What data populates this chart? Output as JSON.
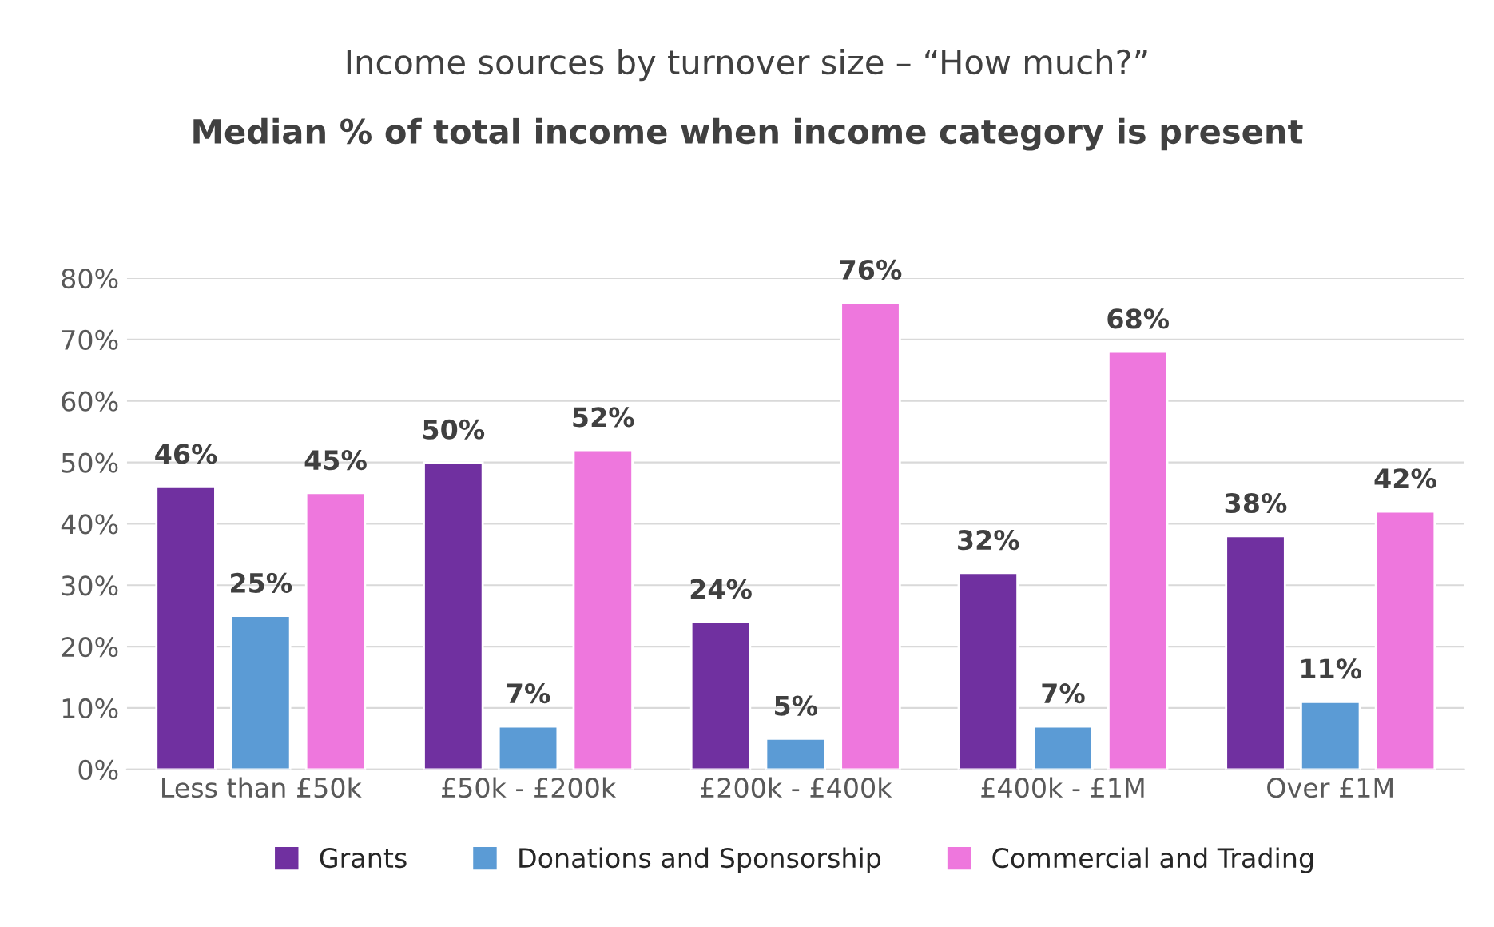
{
  "chart_data": {
    "type": "bar",
    "title": "Income sources by turnover size – “How much?”",
    "subtitle": "Median % of total income when income category is present",
    "categories": [
      "Less than £50k",
      "£50k - £200k",
      "£200k - £400k",
      "£400k - £1M",
      "Over £1M"
    ],
    "series": [
      {
        "name": "Grants",
        "color": "#7030a0",
        "values": [
          46,
          50,
          24,
          32,
          38
        ],
        "value_labels": [
          "46%",
          "50%",
          "24%",
          "32%",
          "38%"
        ]
      },
      {
        "name": "Donations and Sponsorship",
        "color": "#5b9bd5",
        "values": [
          25,
          7,
          5,
          7,
          11
        ],
        "value_labels": [
          "25%",
          "7%",
          "5%",
          "7%",
          "11%"
        ]
      },
      {
        "name": "Commercial and Trading",
        "color": "#ee77dd",
        "values": [
          45,
          52,
          76,
          68,
          42
        ],
        "value_labels": [
          "45%",
          "52%",
          "76%",
          "68%",
          "42%"
        ]
      }
    ],
    "ylim": [
      0,
      80
    ],
    "yticks": [
      {
        "value": 0,
        "label": "0%"
      },
      {
        "value": 10,
        "label": "10%"
      },
      {
        "value": 20,
        "label": "20%"
      },
      {
        "value": 30,
        "label": "30%"
      },
      {
        "value": 40,
        "label": "40%"
      },
      {
        "value": 50,
        "label": "50%"
      },
      {
        "value": 60,
        "label": "60%"
      },
      {
        "value": 70,
        "label": "70%"
      },
      {
        "value": 80,
        "label": "80%"
      }
    ],
    "grid": "y",
    "legend": "bottom"
  }
}
